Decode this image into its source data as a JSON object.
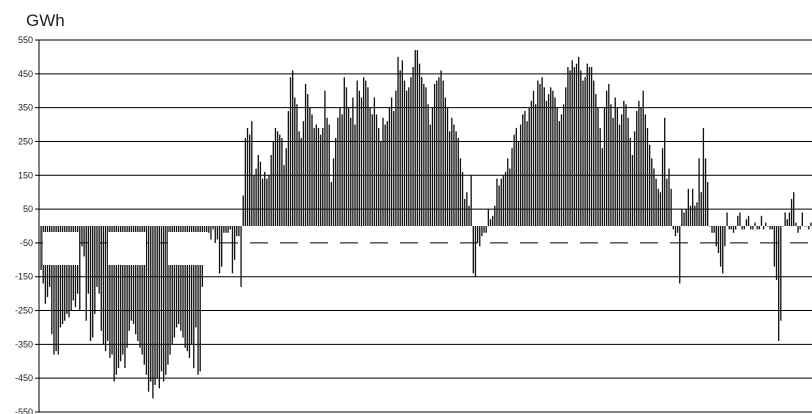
{
  "chart_data": {
    "type": "bar",
    "ylabel": "GWh",
    "ylim": [
      -550,
      550
    ],
    "yticks": [
      550,
      450,
      350,
      250,
      150,
      50,
      -50,
      -150,
      -250,
      -350,
      -450,
      -550
    ],
    "grid": true,
    "series": [
      {
        "values": [
          -130,
          -170,
          -230,
          -210,
          -180,
          -320,
          -380,
          -370,
          -380,
          -300,
          -290,
          -280,
          -260,
          -270,
          -250,
          -220,
          -240,
          -200,
          -250,
          -60,
          -90,
          -280,
          -200,
          -340,
          -330,
          -260,
          -180,
          -200,
          -310,
          -350,
          -370,
          -340,
          -390,
          -380,
          -460,
          -440,
          -420,
          -400,
          -380,
          -420,
          -360,
          -310,
          -280,
          -290,
          -320,
          -340,
          -360,
          -380,
          -410,
          -440,
          -490,
          -460,
          -510,
          -470,
          -450,
          -480,
          -430,
          -460,
          -440,
          -410,
          -380,
          -350,
          -330,
          -300,
          -290,
          -310,
          -330,
          -360,
          -370,
          -390,
          -350,
          -420,
          -300,
          -440,
          -430,
          -180,
          -30,
          -60,
          -20,
          -40,
          -10,
          -50,
          -40,
          -140,
          -120,
          -20,
          -20,
          -20,
          -10,
          -140,
          -100,
          -30,
          -30,
          -180,
          90,
          260,
          290,
          270,
          310,
          150,
          170,
          210,
          190,
          140,
          160,
          140,
          150,
          210,
          250,
          290,
          280,
          270,
          260,
          180,
          230,
          340,
          440,
          460,
          380,
          360,
          280,
          260,
          310,
          420,
          390,
          350,
          330,
          290,
          300,
          290,
          270,
          290,
          400,
          320,
          300,
          130,
          200,
          260,
          320,
          350,
          330,
          440,
          410,
          350,
          320,
          380,
          300,
          430,
          400,
          380,
          440,
          430,
          410,
          350,
          330,
          380,
          330,
          290,
          250,
          320,
          300,
          310,
          350,
          380,
          340,
          400,
          500,
          460,
          490,
          430,
          400,
          410,
          440,
          470,
          520,
          520,
          480,
          440,
          420,
          410,
          360,
          300,
          350,
          420,
          430,
          440,
          460,
          430,
          380,
          350,
          280,
          320,
          300,
          280,
          260,
          200,
          160,
          80,
          100,
          60,
          150,
          -140,
          -150,
          -50,
          -60,
          -30,
          -20,
          -20,
          50,
          20,
          30,
          60,
          140,
          120,
          140,
          150,
          160,
          200,
          170,
          230,
          270,
          290,
          250,
          300,
          330,
          340,
          310,
          350,
          370,
          400,
          360,
          430,
          420,
          440,
          410,
          370,
          390,
          410,
          400,
          380,
          350,
          310,
          330,
          360,
          410,
          470,
          460,
          490,
          470,
          480,
          500,
          460,
          430,
          440,
          480,
          470,
          470,
          430,
          390,
          350,
          290,
          230,
          350,
          400,
          420,
          360,
          320,
          380,
          350,
          300,
          330,
          370,
          360,
          320,
          260,
          210,
          280,
          340,
          370,
          350,
          400,
          330,
          290,
          240,
          200,
          170,
          140,
          110,
          100,
          230,
          320,
          140,
          170,
          110,
          -10,
          -30,
          -20,
          -170,
          50,
          40,
          50,
          110,
          60,
          110,
          60,
          70,
          200,
          100,
          290,
          200,
          130,
          0,
          -20,
          -20,
          -60,
          -80,
          -120,
          -140,
          -60,
          40,
          -10,
          -10,
          -20,
          -10,
          30,
          40,
          -10,
          -10,
          20,
          30,
          -10,
          -10,
          10,
          -10,
          -10,
          30,
          -10,
          10,
          0,
          -10,
          -10,
          -120,
          -160,
          -340,
          -280,
          0,
          40,
          20,
          40,
          80,
          100,
          10,
          -20,
          -10,
          40,
          0,
          0,
          -10,
          10
        ]
      }
    ]
  }
}
